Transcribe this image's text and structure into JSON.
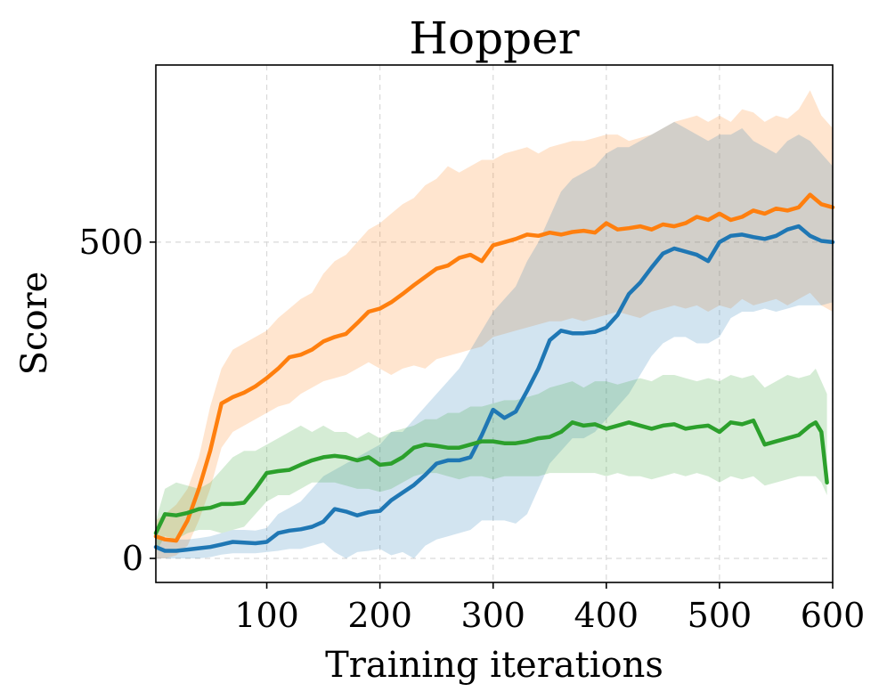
{
  "chart_data": {
    "type": "line",
    "title": "Hopper",
    "xlabel": "Training iterations",
    "ylabel": "Score",
    "xlim": [
      2,
      600
    ],
    "ylim": [
      -38,
      780
    ],
    "xticks": [
      100,
      200,
      300,
      400,
      500,
      600
    ],
    "yticks": [
      0,
      500
    ],
    "grid": true,
    "series": [
      {
        "color": "#ff7f0e",
        "x": [
          2,
          10,
          20,
          30,
          40,
          50,
          60,
          70,
          80,
          90,
          100,
          110,
          120,
          130,
          140,
          150,
          160,
          170,
          180,
          190,
          200,
          210,
          220,
          230,
          240,
          250,
          260,
          270,
          280,
          290,
          300,
          310,
          320,
          330,
          340,
          350,
          360,
          370,
          380,
          390,
          400,
          410,
          420,
          430,
          440,
          450,
          460,
          470,
          480,
          490,
          500,
          510,
          520,
          530,
          540,
          550,
          560,
          570,
          580,
          590,
          600
        ],
        "mean": [
          35,
          30,
          28,
          60,
          110,
          170,
          245,
          255,
          262,
          272,
          285,
          300,
          318,
          322,
          330,
          343,
          350,
          355,
          372,
          390,
          395,
          405,
          418,
          432,
          445,
          458,
          463,
          475,
          480,
          470,
          495,
          500,
          505,
          512,
          510,
          515,
          512,
          516,
          518,
          515,
          530,
          520,
          522,
          525,
          520,
          528,
          525,
          530,
          540,
          535,
          545,
          535,
          540,
          550,
          545,
          553,
          550,
          555,
          575,
          560,
          555
        ],
        "upper": [
          60,
          70,
          85,
          110,
          160,
          240,
          300,
          330,
          340,
          350,
          360,
          380,
          395,
          410,
          420,
          450,
          470,
          480,
          500,
          520,
          530,
          545,
          560,
          570,
          590,
          600,
          620,
          610,
          620,
          630,
          630,
          640,
          645,
          650,
          640,
          650,
          655,
          660,
          660,
          665,
          670,
          670,
          660,
          665,
          670,
          680,
          690,
          695,
          700,
          690,
          700,
          690,
          710,
          705,
          690,
          700,
          695,
          710,
          740,
          700,
          680
        ],
        "lower": [
          0,
          0,
          5,
          20,
          60,
          110,
          175,
          200,
          210,
          220,
          230,
          240,
          245,
          260,
          270,
          280,
          285,
          290,
          300,
          310,
          300,
          290,
          300,
          305,
          300,
          315,
          320,
          325,
          330,
          335,
          350,
          355,
          360,
          365,
          370,
          375,
          375,
          380,
          375,
          380,
          385,
          390,
          385,
          380,
          390,
          395,
          400,
          395,
          400,
          390,
          400,
          395,
          410,
          400,
          405,
          410,
          400,
          410,
          420,
          400,
          390
        ]
      },
      {
        "color": "#1f77b4",
        "x": [
          2,
          10,
          20,
          30,
          40,
          50,
          60,
          70,
          80,
          90,
          100,
          110,
          120,
          130,
          140,
          150,
          160,
          170,
          180,
          190,
          200,
          210,
          220,
          230,
          240,
          250,
          260,
          270,
          280,
          290,
          300,
          310,
          320,
          330,
          340,
          350,
          360,
          370,
          380,
          390,
          400,
          410,
          420,
          430,
          440,
          450,
          460,
          470,
          480,
          490,
          500,
          510,
          520,
          530,
          540,
          550,
          560,
          570,
          580,
          590,
          600
        ],
        "mean": [
          18,
          12,
          12,
          14,
          16,
          18,
          22,
          26,
          25,
          24,
          26,
          40,
          44,
          46,
          50,
          58,
          78,
          74,
          68,
          73,
          75,
          92,
          104,
          116,
          132,
          150,
          155,
          155,
          160,
          195,
          235,
          222,
          232,
          265,
          300,
          345,
          360,
          356,
          356,
          358,
          365,
          385,
          418,
          436,
          460,
          482,
          490,
          485,
          480,
          470,
          500,
          510,
          512,
          508,
          505,
          510,
          520,
          525,
          510,
          502,
          500
        ],
        "upper": [
          40,
          30,
          30,
          30,
          32,
          35,
          40,
          45,
          45,
          44,
          48,
          70,
          80,
          90,
          110,
          130,
          140,
          150,
          160,
          170,
          180,
          200,
          200,
          220,
          240,
          260,
          280,
          300,
          330,
          360,
          390,
          410,
          430,
          470,
          500,
          540,
          580,
          600,
          610,
          620,
          640,
          650,
          650,
          660,
          670,
          680,
          690,
          680,
          670,
          660,
          670,
          670,
          680,
          660,
          650,
          640,
          660,
          670,
          660,
          640,
          620
        ],
        "lower": [
          0,
          0,
          0,
          0,
          0,
          2,
          6,
          8,
          8,
          8,
          10,
          12,
          15,
          15,
          20,
          25,
          10,
          0,
          10,
          12,
          15,
          5,
          10,
          0,
          20,
          30,
          35,
          40,
          45,
          60,
          60,
          60,
          55,
          70,
          110,
          150,
          170,
          190,
          190,
          200,
          220,
          240,
          260,
          290,
          320,
          340,
          350,
          350,
          340,
          340,
          350,
          380,
          390,
          390,
          395,
          390,
          395,
          400,
          400,
          400,
          405
        ]
      },
      {
        "color": "#2ca02c",
        "x": [
          2,
          10,
          20,
          30,
          40,
          50,
          60,
          70,
          80,
          90,
          100,
          110,
          120,
          130,
          140,
          150,
          160,
          170,
          180,
          190,
          200,
          210,
          220,
          230,
          240,
          250,
          260,
          270,
          280,
          290,
          300,
          310,
          320,
          330,
          340,
          350,
          360,
          370,
          380,
          390,
          400,
          410,
          420,
          430,
          440,
          450,
          460,
          470,
          480,
          490,
          500,
          510,
          520,
          530,
          540,
          550,
          560,
          570,
          580,
          585,
          590,
          595
        ],
        "mean": [
          40,
          70,
          68,
          72,
          78,
          80,
          86,
          86,
          88,
          110,
          135,
          138,
          140,
          148,
          155,
          160,
          162,
          160,
          155,
          160,
          148,
          150,
          160,
          175,
          180,
          178,
          175,
          175,
          180,
          185,
          185,
          182,
          182,
          185,
          190,
          192,
          200,
          215,
          210,
          212,
          205,
          210,
          215,
          210,
          205,
          210,
          212,
          205,
          208,
          210,
          200,
          215,
          212,
          218,
          180,
          185,
          190,
          195,
          210,
          215,
          200,
          120
        ],
        "upper": [
          60,
          110,
          120,
          115,
          110,
          120,
          140,
          160,
          170,
          170,
          180,
          190,
          200,
          210,
          200,
          210,
          200,
          200,
          190,
          200,
          190,
          200,
          205,
          210,
          220,
          220,
          230,
          230,
          240,
          240,
          245,
          250,
          250,
          255,
          260,
          270,
          275,
          280,
          270,
          280,
          280,
          275,
          280,
          285,
          280,
          290,
          290,
          285,
          280,
          285,
          280,
          290,
          285,
          290,
          270,
          280,
          290,
          285,
          290,
          300,
          280,
          260
        ],
        "lower": [
          10,
          35,
          30,
          40,
          45,
          45,
          40,
          45,
          50,
          70,
          90,
          100,
          100,
          110,
          120,
          120,
          120,
          115,
          110,
          110,
          105,
          110,
          120,
          130,
          135,
          135,
          130,
          125,
          130,
          130,
          125,
          130,
          130,
          130,
          130,
          135,
          135,
          135,
          135,
          135,
          130,
          135,
          130,
          130,
          125,
          130,
          135,
          130,
          135,
          130,
          120,
          130,
          125,
          130,
          115,
          120,
          125,
          130,
          130,
          130,
          120,
          100
        ]
      }
    ]
  }
}
